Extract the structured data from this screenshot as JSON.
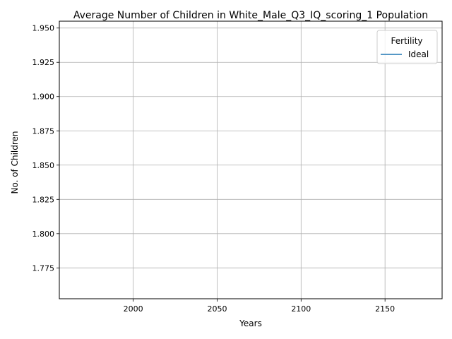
{
  "chart_data": {
    "type": "line",
    "title": "Average Number of Children in White_Male_Q3_IQ_scoring_1 Population",
    "xlabel": "Years",
    "ylabel": "No. of Children",
    "xlim": [
      1956,
      2184
    ],
    "ylim": [
      1.7525,
      1.955
    ],
    "xticks": [
      2000,
      2050,
      2100,
      2150
    ],
    "yticks": [
      1.775,
      1.8,
      1.825,
      1.85,
      1.875,
      1.9,
      1.925,
      1.95
    ],
    "xtick_labels": [
      "2000",
      "2050",
      "2100",
      "2150"
    ],
    "ytick_labels": [
      "1.775",
      "1.800",
      "1.825",
      "1.850",
      "1.875",
      "1.900",
      "1.925",
      "1.950"
    ],
    "grid": true,
    "legend": {
      "title": "Fertility",
      "placement": "top-right",
      "entries": [
        {
          "name": "Ideal",
          "color": "#1f77b4"
        }
      ]
    },
    "series": [
      {
        "name": "Ideal",
        "color": "#1f77b4",
        "x": [],
        "y": []
      }
    ]
  }
}
